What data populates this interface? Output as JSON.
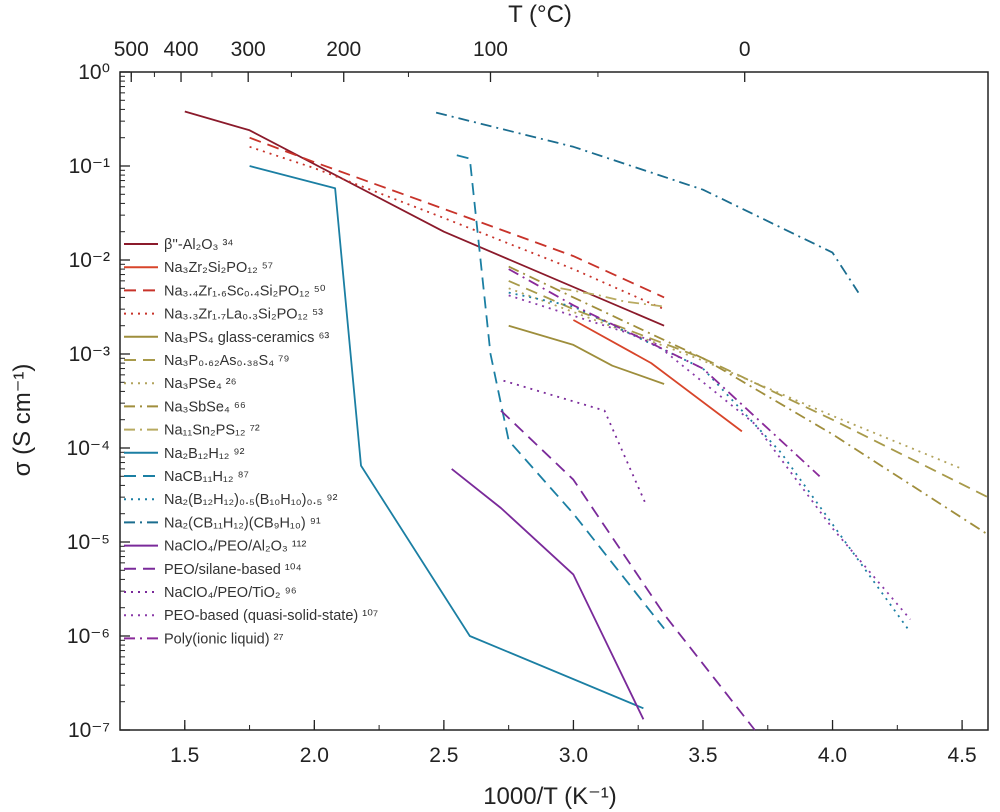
{
  "chart_data": {
    "type": "line",
    "xlabel": "1000/T (K⁻¹)",
    "ylabel": "σ (S cm⁻¹)",
    "top_axis_label": "T (°C)",
    "xlim": [
      1.25,
      4.6
    ],
    "ylim_log10": [
      -7,
      0
    ],
    "y_scale": "log",
    "x_ticks": [
      "1.5",
      "2.0",
      "2.5",
      "3.0",
      "3.5",
      "4.0",
      "4.5"
    ],
    "y_ticks": [
      "10⁻⁷",
      "10⁻⁶",
      "10⁻⁵",
      "10⁻⁴",
      "10⁻³",
      "10⁻²",
      "10⁻¹",
      "10⁰"
    ],
    "top_ticks": [
      "500",
      "400",
      "300",
      "200",
      "100",
      "0"
    ],
    "legend_placement": "left-center",
    "grid": false,
    "series": [
      {
        "name": "β''-Al₂O₃ ³⁴",
        "color": "#8b1a2b",
        "dash": "solid",
        "x": [
          1.5,
          1.75,
          2.5,
          3.35
        ],
        "y": [
          0.38,
          0.24,
          0.02,
          0.002
        ]
      },
      {
        "name": "Na₃Zr₂Si₂PO₁₂ ⁵⁷",
        "color": "#d8452a",
        "dash": "solid",
        "x": [
          3.0,
          3.3,
          3.65
        ],
        "y": [
          0.0023,
          0.0008,
          0.00015
        ]
      },
      {
        "name": "Na₃.₄Zr₁.₆Sc₀.₄Si₂PO₁₂ ⁵⁰",
        "color": "#c8332a",
        "dash": "dashed",
        "x": [
          1.75,
          2.0,
          2.5,
          3.0,
          3.35
        ],
        "y": [
          0.2,
          0.11,
          0.035,
          0.011,
          0.004
        ]
      },
      {
        "name": "Na₃.₃Zr₁.₇La₀.₃Si₂PO₁₂ ⁵³",
        "color": "#c8332a",
        "dash": "dotted",
        "x": [
          1.75,
          2.0,
          2.5,
          3.0,
          3.35
        ],
        "y": [
          0.16,
          0.095,
          0.028,
          0.008,
          0.003
        ]
      },
      {
        "name": "Na₃PS₄ glass-ceramics ⁶³",
        "color": "#9e8e3c",
        "dash": "solid",
        "x": [
          2.75,
          3.0,
          3.15,
          3.35
        ],
        "y": [
          0.002,
          0.00125,
          0.00075,
          0.00048
        ]
      },
      {
        "name": "Na₃P₀.₆₂As₀.₃₈S₄ ⁷⁹",
        "color": "#a89a4a",
        "dash": "dashed",
        "x": [
          2.75,
          3.0,
          3.5,
          4.0,
          4.6
        ],
        "y": [
          0.006,
          0.003,
          0.0009,
          0.0002,
          3e-05
        ]
      },
      {
        "name": "Na₃PSe₄ ²⁶",
        "color": "#b2a35c",
        "dash": "dotted",
        "x": [
          2.75,
          3.0,
          3.5,
          4.0,
          4.5
        ],
        "y": [
          0.005,
          0.0028,
          0.00085,
          0.00022,
          6e-05
        ]
      },
      {
        "name": "Na₃SbSe₄ ⁶⁶",
        "color": "#a08e3c",
        "dash": "dashdot",
        "x": [
          2.75,
          3.0,
          3.5,
          4.0,
          4.6
        ],
        "y": [
          0.0085,
          0.004,
          0.0009,
          0.00014,
          1.2e-05
        ]
      },
      {
        "name": "Na₁₁Sn₂PS₁₂ ⁷²",
        "color": "#b8aa60",
        "dash": "dashdot",
        "x": [
          2.95,
          3.1,
          3.2,
          3.35
        ],
        "y": [
          0.005,
          0.0042,
          0.0036,
          0.0032
        ]
      },
      {
        "name": "Na₂B₁₂H₁₂ ⁹²",
        "color": "#1b7fa3",
        "dash": "solid",
        "x": [
          1.75,
          2.08,
          2.18,
          2.6,
          3.27
        ],
        "y": [
          0.1,
          0.058,
          6.5e-05,
          1e-06,
          1.7e-07
        ]
      },
      {
        "name": "NaCB₁₁H₁₂ ⁸⁷",
        "color": "#1b7fa3",
        "dash": "dashed",
        "x": [
          2.55,
          2.6,
          2.68,
          2.75,
          3.0,
          3.35
        ],
        "y": [
          0.13,
          0.12,
          0.001,
          0.00012,
          2e-05,
          1.2e-06
        ]
      },
      {
        "name": "Na₂(B₁₂H₁₂)₀.₅(B₁₀H₁₀)₀.₅ ⁹²",
        "color": "#1b7fa3",
        "dash": "dotted",
        "x": [
          2.75,
          3.0,
          3.5,
          3.8,
          4.29
        ],
        "y": [
          0.0045,
          0.0032,
          0.0007,
          9e-05,
          1.2e-06
        ]
      },
      {
        "name": "Na₂(CB₁₁H₁₂)(CB₉H₁₀) ⁹¹",
        "color": "#1b6d8f",
        "dash": "dashdot",
        "x": [
          2.47,
          3.0,
          3.5,
          4.0,
          4.1
        ],
        "y": [
          0.37,
          0.16,
          0.056,
          0.012,
          0.0045
        ]
      },
      {
        "name": "NaClO₄/PEO/Al₂O₃ ¹¹²",
        "color": "#7a2a9a",
        "dash": "solid",
        "x": [
          2.53,
          2.72,
          3.0,
          3.27
        ],
        "y": [
          6e-05,
          2.3e-05,
          4.5e-06,
          1.3e-07
        ]
      },
      {
        "name": "PEO/silane-based ¹⁰⁴",
        "color": "#7a2a9a",
        "dash": "dashed",
        "x": [
          2.72,
          3.0,
          3.35,
          3.7
        ],
        "y": [
          0.00025,
          4.6e-05,
          1.7e-06,
          1e-07
        ]
      },
      {
        "name": "NaClO₄/PEO/TiO₂ ⁹⁶",
        "color": "#7a2a9a",
        "dash": "dotted",
        "x": [
          2.73,
          3.12,
          3.28
        ],
        "y": [
          0.00052,
          0.00025,
          2.5e-05
        ]
      },
      {
        "name": "PEO-based (quasi-solid-state) ¹⁰⁷",
        "color": "#8a3aa8",
        "dash": "dotted",
        "x": [
          2.75,
          3.3,
          3.7,
          4.0,
          4.3
        ],
        "y": [
          0.0042,
          0.0014,
          0.00018,
          1.4e-05,
          1.5e-06
        ]
      },
      {
        "name": "Poly(ionic liquid) ²⁷",
        "color": "#8a2a9a",
        "dash": "dashdot",
        "x": [
          2.75,
          3.0,
          3.5,
          3.95
        ],
        "y": [
          0.008,
          0.0033,
          0.0007,
          5e-05
        ]
      }
    ]
  }
}
